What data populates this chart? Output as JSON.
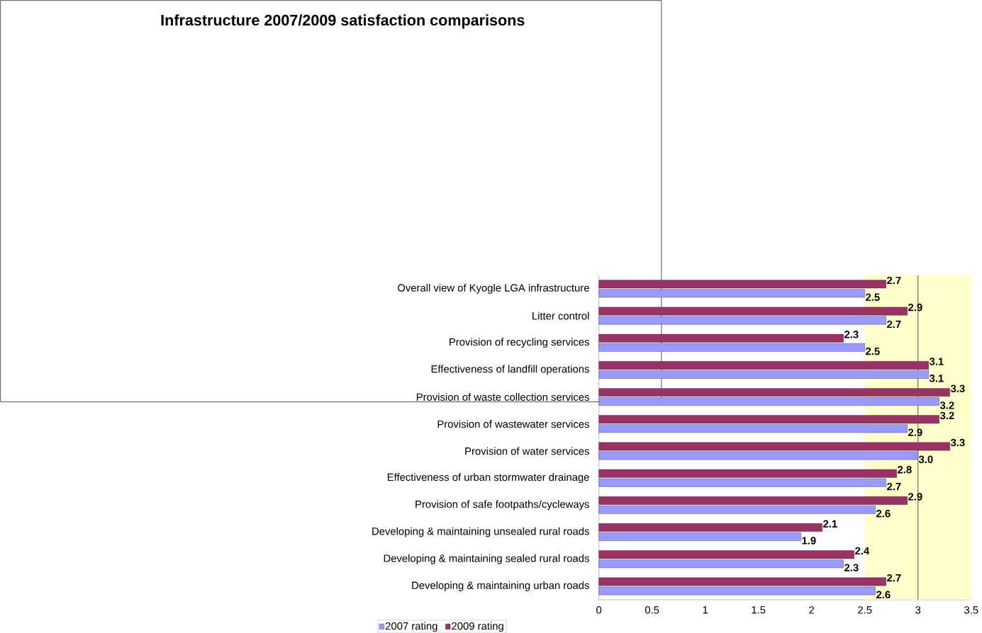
{
  "chart_data": {
    "type": "bar",
    "orientation": "horizontal",
    "title": "Infrastructure 2007/2009 satisfaction comparisons",
    "categories": [
      "Overall view of Kyogle LGA infrastructure",
      "Litter control",
      "Provision of recycling services",
      "Effectiveness of landfill operations",
      "Provision of waste collection services",
      "Provision of wastewater services",
      "Provision of water services",
      "Effectiveness of urban stormwater drainage",
      "Provision of safe footpaths/cycleways",
      "Developing & maintaining unsealed rural roads",
      "Developing & maintaining sealed rural roads",
      "Developing & maintaining urban roads"
    ],
    "series": [
      {
        "name": "2007 rating",
        "color": "#9999ff",
        "values": [
          2.5,
          2.7,
          2.5,
          3.1,
          3.2,
          2.9,
          3.0,
          2.7,
          2.6,
          1.9,
          2.3,
          2.6
        ],
        "value_labels": [
          "2.5",
          "2.7",
          "2.5",
          "3.1",
          "3.2",
          "2.9",
          "3.0",
          "2.7",
          "2.6",
          "1.9",
          "2.3",
          "2.6"
        ]
      },
      {
        "name": "2009 rating",
        "color": "#993366",
        "values": [
          2.7,
          2.9,
          2.3,
          3.1,
          3.3,
          3.2,
          3.3,
          2.8,
          2.9,
          2.1,
          2.4,
          2.7
        ],
        "value_labels": [
          "2.7",
          "2.9",
          "2.3",
          "3.1",
          "3.3",
          "3.2",
          "3.3",
          "2.8",
          "2.9",
          "2.1",
          "2.4",
          "2.7"
        ]
      }
    ],
    "xlim": [
      0,
      3.5
    ],
    "xticks": [
      0,
      0.5,
      1,
      1.5,
      2,
      2.5,
      3,
      3.5
    ],
    "bands": [
      {
        "axis": "x",
        "from": 2.5,
        "to": 3.5,
        "color": "#ffffcc"
      }
    ],
    "ref_lines": [
      {
        "axis": "x",
        "value": 3,
        "color": "#000000"
      }
    ],
    "legend": "bottom left",
    "grid": false
  }
}
